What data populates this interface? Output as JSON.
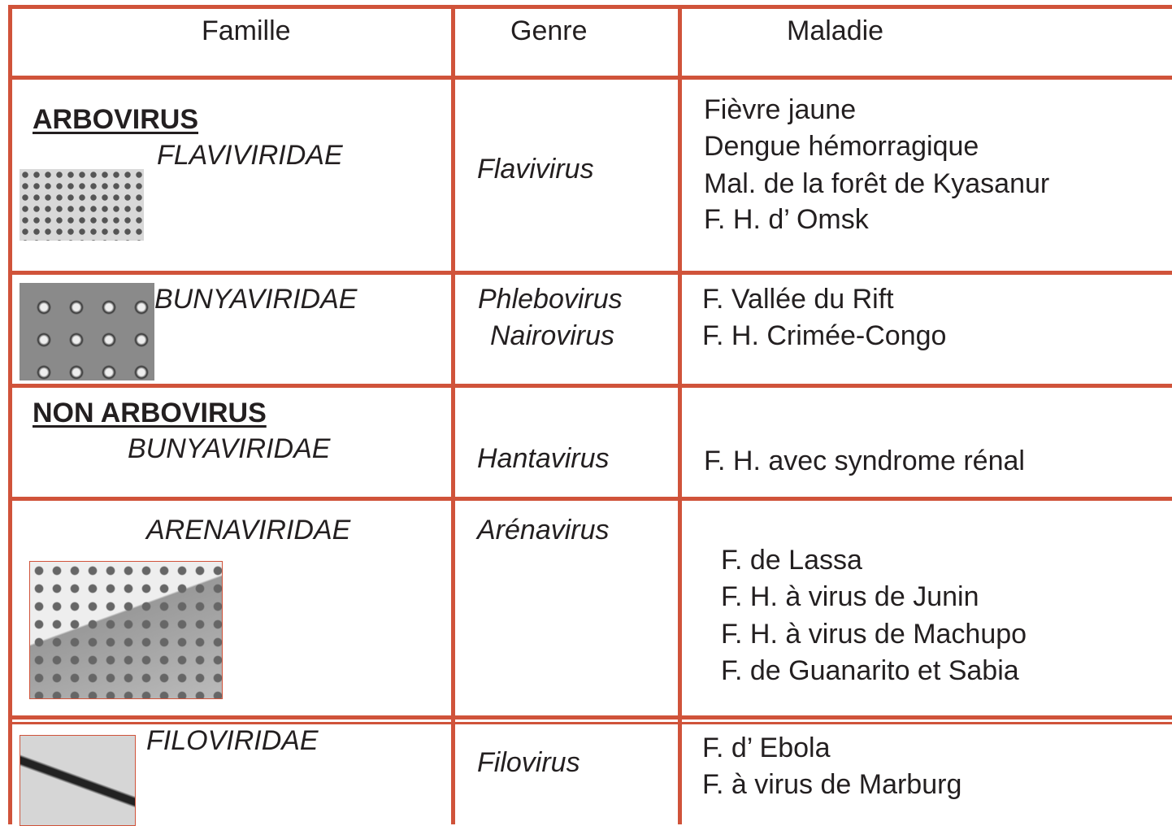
{
  "header": {
    "columns": [
      "Famille",
      "Genre",
      "Maladie"
    ]
  },
  "rows": [
    {
      "group": "ARBOVIRUS",
      "family": "FLAVIVIRIDAE",
      "genera": [
        "Flavivirus"
      ],
      "diseases": [
        "Fièvre jaune",
        "Dengue hémorragique",
        "Mal. de la forêt de Kyasanur",
        "F. H. d’ Omsk"
      ]
    },
    {
      "family": "BUNYAVIRIDAE",
      "genera": [
        "Phlebovirus",
        "Nairovirus"
      ],
      "diseases": [
        "F. Vallée du Rift",
        "F. H. Crimée-Congo"
      ]
    },
    {
      "group": "NON ARBOVIRUS",
      "family": "BUNYAVIRIDAE",
      "genera": [
        "Hantavirus"
      ],
      "diseases": [
        "F. H. avec syndrome rénal"
      ]
    },
    {
      "family": "ARENAVIRIDAE",
      "genera": [
        "Arénavirus"
      ],
      "diseases": [
        "F. de Lassa",
        "F. H. à virus de Junin",
        "F. H. à virus de Machupo",
        "F. de Guanarito et Sabia"
      ]
    },
    {
      "family": "FILOVIRIDAE",
      "genera": [
        "Filovirus"
      ],
      "diseases": [
        "F. d’ Ebola",
        "F. à virus de Marburg"
      ]
    }
  ]
}
